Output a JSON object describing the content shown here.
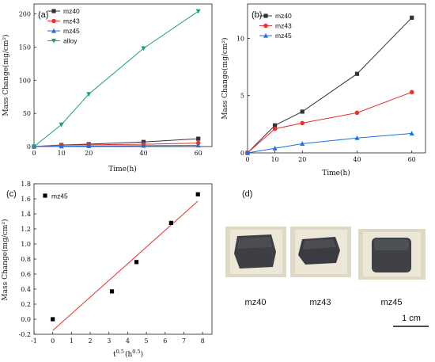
{
  "chart_data": [
    {
      "panel": "(a)",
      "type": "line",
      "x": [
        0,
        10,
        20,
        40,
        60
      ],
      "xlabel": "Time(h)",
      "ylabel": "Mass Change(mg/cm²)",
      "xlim": [
        0,
        65
      ],
      "ylim": [
        0,
        215
      ],
      "xticks": [
        0,
        10,
        20,
        40,
        60
      ],
      "yticks": [
        0,
        50,
        100,
        150,
        200
      ],
      "legend": "top-left",
      "series": [
        {
          "name": "mz40",
          "color": "#333333",
          "marker": "square",
          "values": [
            0,
            2.4,
            3.6,
            6.9,
            11.8
          ]
        },
        {
          "name": "mz43",
          "color": "#e8322f",
          "marker": "circle",
          "values": [
            0,
            2.1,
            2.6,
            3.5,
            5.3
          ]
        },
        {
          "name": "mz45",
          "color": "#1f6fe0",
          "marker": "triangle-up",
          "values": [
            0,
            0.4,
            0.8,
            1.3,
            1.7
          ]
        },
        {
          "name": "alloy",
          "color": "#1aa37a",
          "marker": "triangle-down",
          "values": [
            0,
            33,
            79,
            148,
            204
          ]
        }
      ]
    },
    {
      "panel": "(b)",
      "type": "line",
      "x": [
        0,
        10,
        20,
        40,
        60
      ],
      "xlabel": "Time(h)",
      "ylabel": "Mass Change(mg/cm²)",
      "xlim": [
        0,
        65
      ],
      "ylim": [
        0,
        13
      ],
      "xticks": [
        0,
        10,
        20,
        40,
        60
      ],
      "yticks": [
        0,
        5,
        10
      ],
      "legend": "top-left",
      "series": [
        {
          "name": "mz40",
          "color": "#333333",
          "marker": "square",
          "values": [
            0,
            2.4,
            3.6,
            6.9,
            11.8
          ]
        },
        {
          "name": "mz43",
          "color": "#e8322f",
          "marker": "circle",
          "values": [
            0,
            2.1,
            2.6,
            3.5,
            5.3
          ]
        },
        {
          "name": "mz45",
          "color": "#1f6fe0",
          "marker": "triangle-up",
          "values": [
            0,
            0.4,
            0.8,
            1.3,
            1.7
          ]
        }
      ]
    },
    {
      "panel": "(c)",
      "type": "scatter",
      "xlabel": "t^0.5 (h^0.5)",
      "xlabel_main": "t",
      "xlabel_exp1": "0.5",
      "xlabel_mid": "(h",
      "xlabel_exp2": "0.5",
      "xlabel_end": ")",
      "ylabel": "Mass Change(mg/cm²)",
      "xlim": [
        -1,
        8.5
      ],
      "ylim": [
        -0.2,
        1.8
      ],
      "xticks": [
        -1,
        0,
        1,
        2,
        3,
        4,
        5,
        6,
        7,
        8
      ],
      "yticks": [
        -0.2,
        0.0,
        0.2,
        0.4,
        0.6,
        0.8,
        1.0,
        1.2,
        1.4,
        1.6,
        1.8
      ],
      "ytick_labels": [
        "-0.2",
        "0.0",
        "0.2",
        "0.4",
        "0.6",
        "0.8",
        "1.0",
        "1.2",
        "1.4",
        "1.6",
        "1.8"
      ],
      "legend": "top-left",
      "series": [
        {
          "name": "mz45",
          "color": "#000000",
          "marker": "square",
          "x": [
            0,
            3.16,
            4.47,
            6.32,
            7.75
          ],
          "y": [
            0.0,
            0.37,
            0.76,
            1.28,
            1.66
          ]
        }
      ],
      "fit": {
        "color": "#e8322f",
        "x": [
          0,
          7.75
        ],
        "y": [
          -0.15,
          1.57
        ]
      }
    }
  ],
  "photos": {
    "panel": "(d)",
    "labels": [
      "mz40",
      "mz43",
      "mz45"
    ],
    "scale": "1 cm"
  }
}
